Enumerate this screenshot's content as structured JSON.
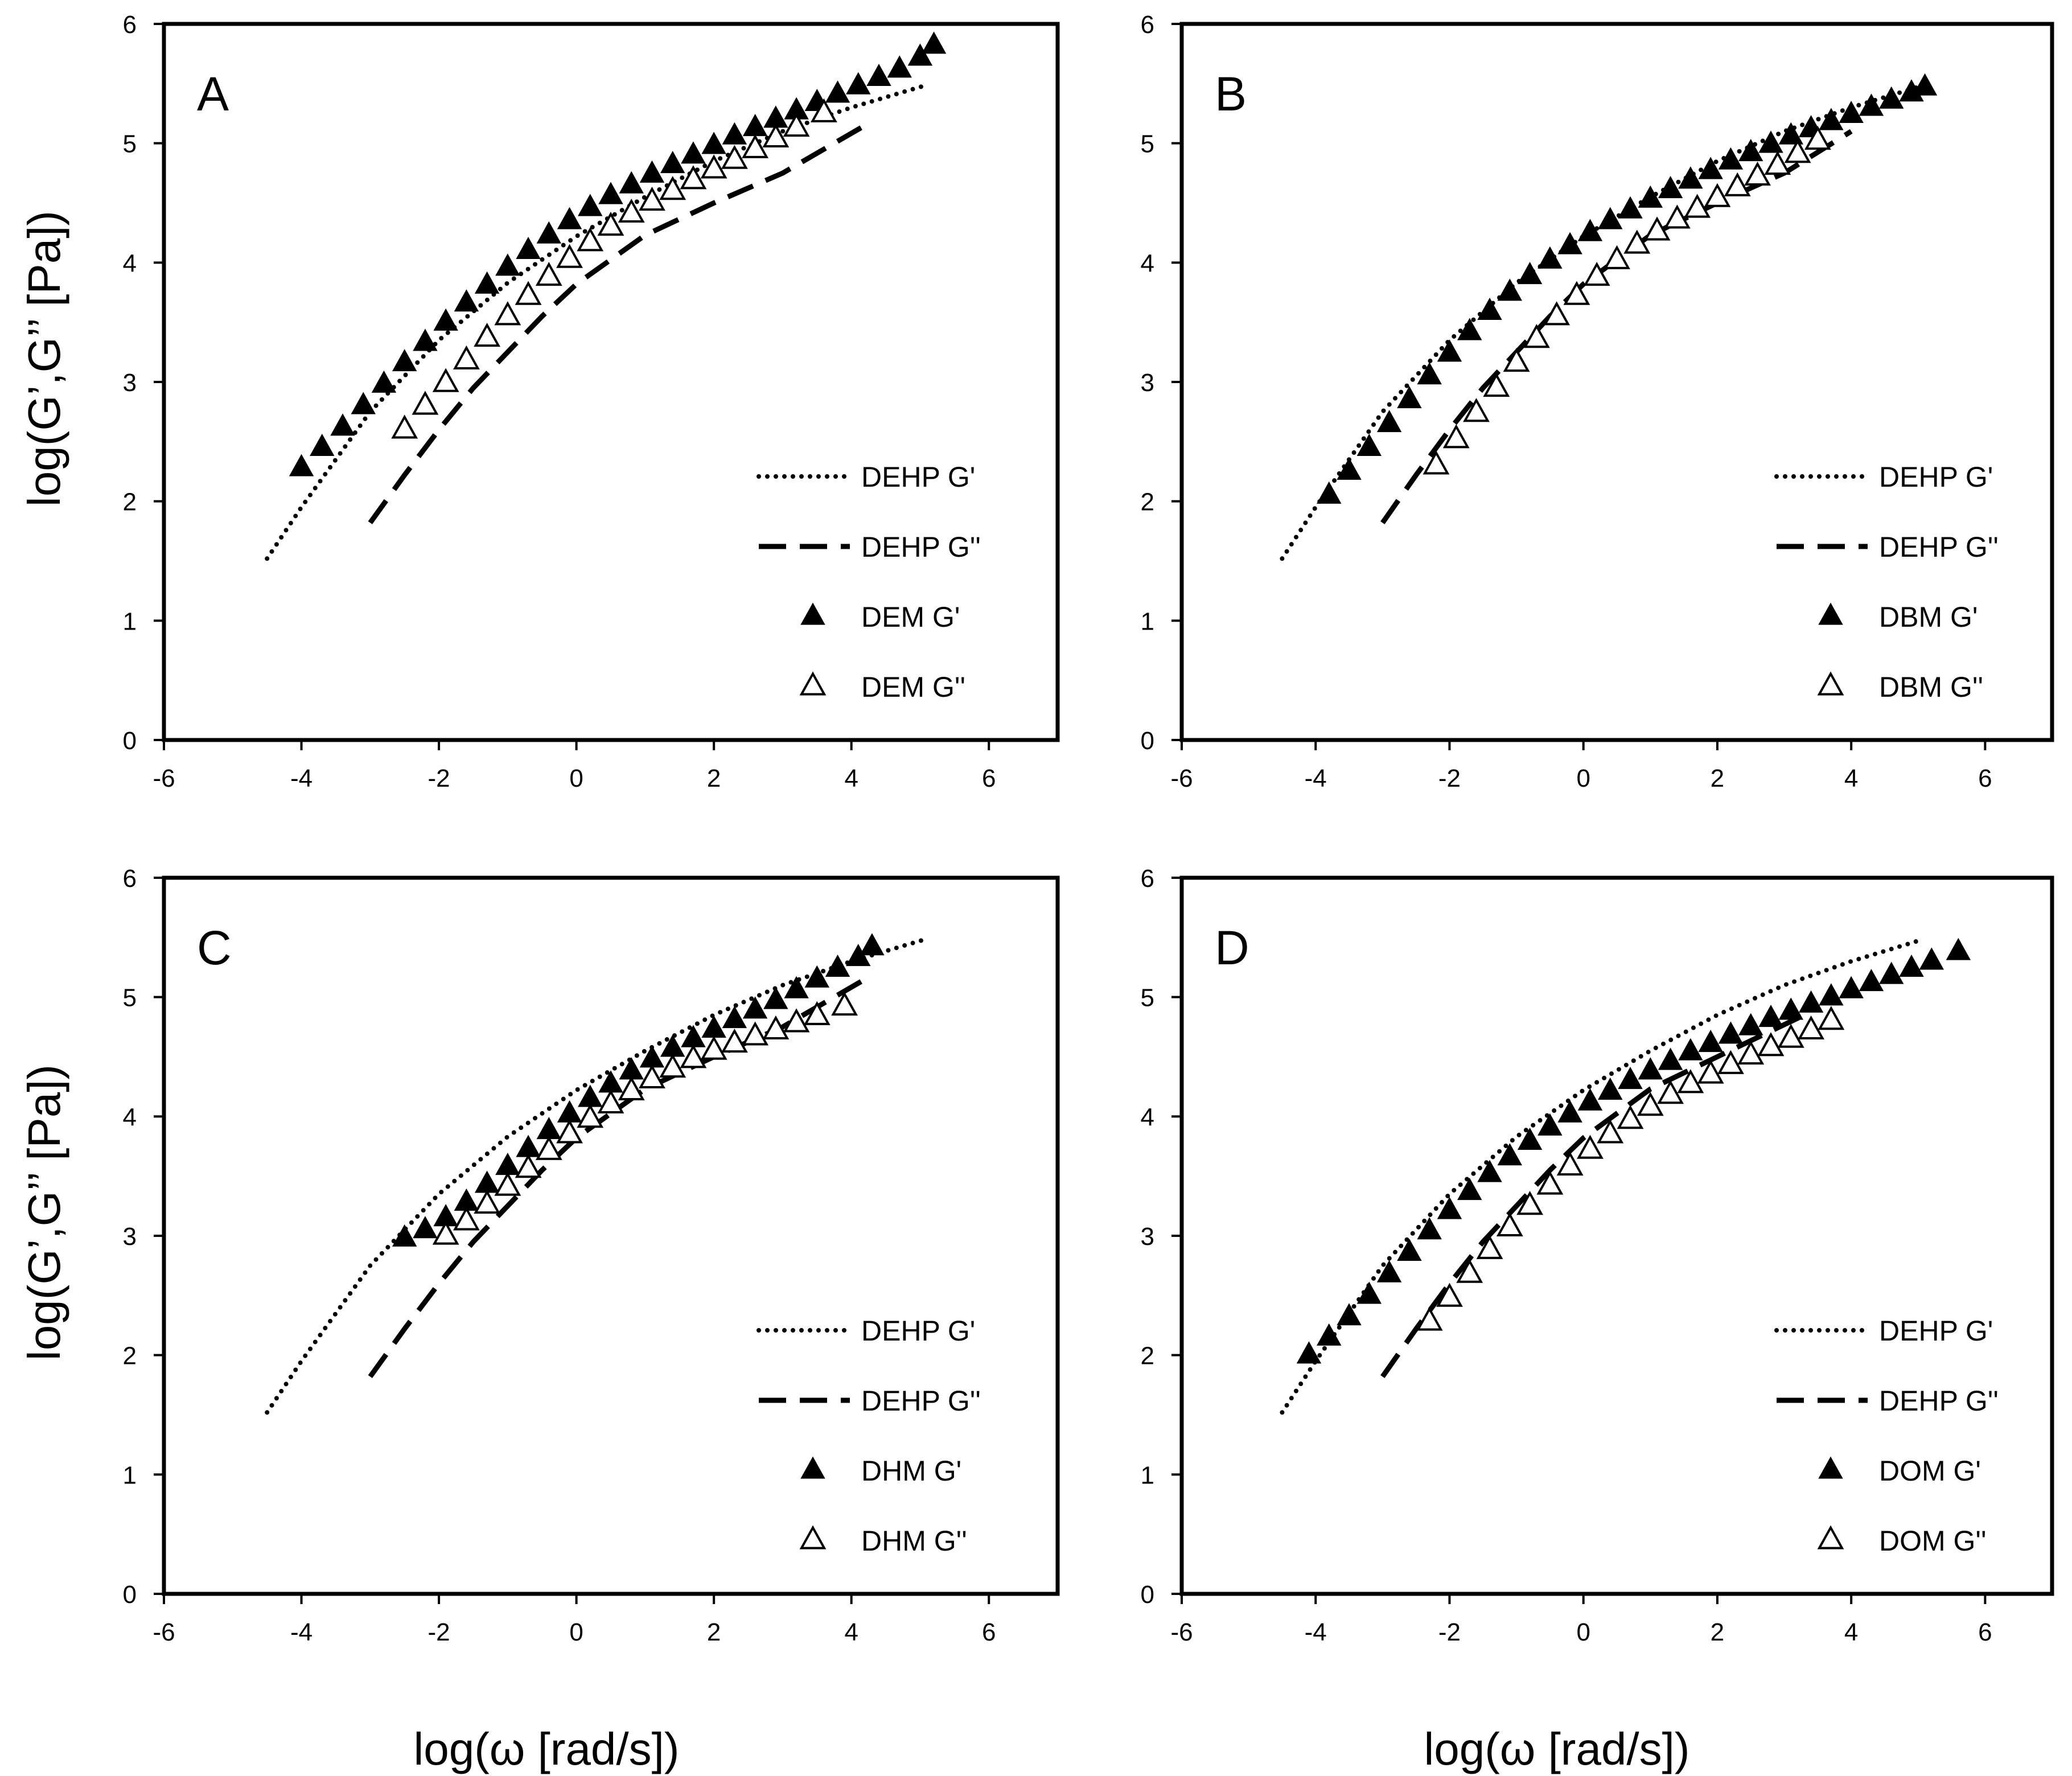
{
  "figure": {
    "xlabel": "log(ω [rad/s])",
    "ylabel": "log(G’,G’’  [Pa])"
  },
  "chart_data": [
    {
      "type": "scatter",
      "panel": "A",
      "xlim": [
        -6,
        7
      ],
      "ylim": [
        0,
        6
      ],
      "xticks": [
        "-6",
        "-4",
        "-2",
        "0",
        "2",
        "4",
        "6"
      ],
      "yticks": [
        "0",
        "1",
        "2",
        "3",
        "4",
        "5",
        "6"
      ],
      "grid": false,
      "legend_position": "bottom-right",
      "series": [
        {
          "name": "DEHP  G'",
          "style": "dotted-line",
          "x": [
            -4.5,
            -4,
            -3,
            -2,
            -1,
            0,
            1,
            2,
            3,
            4,
            5.05
          ],
          "y": [
            1.52,
            1.95,
            2.75,
            3.35,
            3.83,
            4.22,
            4.55,
            4.85,
            5.1,
            5.3,
            5.48
          ]
        },
        {
          "name": "DEHP  G''",
          "style": "dashed-line",
          "x": [
            -3,
            -2.5,
            -2,
            -1.5,
            -1,
            -0.5,
            0,
            1,
            2,
            3,
            4.2
          ],
          "y": [
            1.82,
            2.22,
            2.6,
            2.95,
            3.25,
            3.55,
            3.82,
            4.23,
            4.5,
            4.75,
            5.15
          ]
        },
        {
          "name": "DEM  G'",
          "style": "filled-triangle",
          "x": [
            -4,
            -3.7,
            -3.4,
            -3.1,
            -2.8,
            -2.5,
            -2.2,
            -1.9,
            -1.6,
            -1.3,
            -1,
            -0.7,
            -0.4,
            -0.1,
            0.2,
            0.5,
            0.8,
            1.1,
            1.4,
            1.7,
            2,
            2.3,
            2.6,
            2.9,
            3.2,
            3.5,
            3.8,
            4.1,
            4.4,
            4.7,
            5,
            5.2
          ],
          "y": [
            2.28,
            2.45,
            2.62,
            2.8,
            2.98,
            3.16,
            3.33,
            3.5,
            3.66,
            3.81,
            3.96,
            4.1,
            4.23,
            4.35,
            4.46,
            4.56,
            4.65,
            4.74,
            4.82,
            4.9,
            4.98,
            5.06,
            5.13,
            5.2,
            5.27,
            5.34,
            5.41,
            5.48,
            5.55,
            5.62,
            5.72,
            5.82
          ]
        },
        {
          "name": "DEM  G''",
          "style": "open-triangle",
          "x": [
            -2.5,
            -2.2,
            -1.9,
            -1.6,
            -1.3,
            -1,
            -0.7,
            -0.4,
            -0.1,
            0.2,
            0.5,
            0.8,
            1.1,
            1.4,
            1.7,
            2,
            2.3,
            2.6,
            2.9,
            3.2,
            3.6
          ],
          "y": [
            2.6,
            2.8,
            2.99,
            3.18,
            3.37,
            3.55,
            3.72,
            3.88,
            4.03,
            4.17,
            4.3,
            4.41,
            4.51,
            4.6,
            4.69,
            4.78,
            4.86,
            4.95,
            5.04,
            5.13,
            5.25
          ]
        }
      ]
    },
    {
      "type": "scatter",
      "panel": "B",
      "xlim": [
        -6,
        7
      ],
      "ylim": [
        0,
        6
      ],
      "xticks": [
        "-6",
        "-4",
        "-2",
        "0",
        "2",
        "4",
        "6"
      ],
      "yticks": [
        "0",
        "1",
        "2",
        "3",
        "4",
        "5",
        "6"
      ],
      "grid": false,
      "legend_position": "bottom-right",
      "series": [
        {
          "name": "DEHP  G'",
          "style": "dotted-line",
          "x": [
            -4.5,
            -4,
            -3,
            -2,
            -1,
            0,
            1,
            2,
            3,
            4,
            5.05
          ],
          "y": [
            1.52,
            1.95,
            2.75,
            3.35,
            3.83,
            4.22,
            4.55,
            4.85,
            5.1,
            5.3,
            5.48
          ]
        },
        {
          "name": "DEHP  G''",
          "style": "dashed-line",
          "x": [
            -3,
            -2.5,
            -2,
            -1.5,
            -1,
            -0.5,
            0,
            1,
            2,
            3,
            4
          ],
          "y": [
            1.82,
            2.22,
            2.6,
            2.95,
            3.25,
            3.55,
            3.82,
            4.23,
            4.5,
            4.75,
            5.1
          ]
        },
        {
          "name": "DBM  G'",
          "style": "filled-triangle",
          "x": [
            -3.8,
            -3.5,
            -3.2,
            -2.9,
            -2.6,
            -2.3,
            -2,
            -1.7,
            -1.4,
            -1.1,
            -0.8,
            -0.5,
            -0.2,
            0.1,
            0.4,
            0.7,
            1,
            1.3,
            1.6,
            1.9,
            2.2,
            2.5,
            2.8,
            3.1,
            3.4,
            3.7,
            4,
            4.3,
            4.6,
            4.9,
            5.1
          ],
          "y": [
            2.05,
            2.25,
            2.45,
            2.65,
            2.85,
            3.05,
            3.24,
            3.42,
            3.59,
            3.75,
            3.89,
            4.02,
            4.14,
            4.25,
            4.35,
            4.44,
            4.53,
            4.61,
            4.69,
            4.77,
            4.85,
            4.92,
            4.99,
            5.06,
            5.12,
            5.18,
            5.24,
            5.3,
            5.36,
            5.42,
            5.47
          ]
        },
        {
          "name": "DBM  G''",
          "style": "open-triangle",
          "x": [
            -2.2,
            -1.9,
            -1.6,
            -1.3,
            -1,
            -0.7,
            -0.4,
            -0.1,
            0.2,
            0.5,
            0.8,
            1.1,
            1.4,
            1.7,
            2,
            2.3,
            2.6,
            2.9,
            3.2,
            3.5
          ],
          "y": [
            2.3,
            2.52,
            2.74,
            2.95,
            3.16,
            3.36,
            3.55,
            3.72,
            3.88,
            4.02,
            4.15,
            4.26,
            4.36,
            4.45,
            4.54,
            4.63,
            4.72,
            4.81,
            4.91,
            5.02
          ]
        }
      ]
    },
    {
      "type": "scatter",
      "panel": "C",
      "xlim": [
        -6,
        7
      ],
      "ylim": [
        0,
        6
      ],
      "xticks": [
        "-6",
        "-4",
        "-2",
        "0",
        "2",
        "4",
        "6"
      ],
      "yticks": [
        "0",
        "1",
        "2",
        "3",
        "4",
        "5",
        "6"
      ],
      "grid": false,
      "legend_position": "bottom-right",
      "series": [
        {
          "name": "DEHP  G'",
          "style": "dotted-line",
          "x": [
            -4.5,
            -4,
            -3,
            -2,
            -1,
            0,
            1,
            2,
            3,
            4,
            5.05
          ],
          "y": [
            1.52,
            1.95,
            2.75,
            3.35,
            3.83,
            4.22,
            4.55,
            4.85,
            5.1,
            5.3,
            5.48
          ]
        },
        {
          "name": "DEHP  G''",
          "style": "dashed-line",
          "x": [
            -3,
            -2.5,
            -2,
            -1.5,
            -1,
            -0.5,
            0,
            1,
            2,
            3,
            4.2
          ],
          "y": [
            1.82,
            2.22,
            2.6,
            2.95,
            3.25,
            3.55,
            3.82,
            4.23,
            4.5,
            4.75,
            5.15
          ]
        },
        {
          "name": "DHM  G'",
          "style": "filled-triangle",
          "x": [
            -2.5,
            -2.2,
            -1.9,
            -1.6,
            -1.3,
            -1,
            -0.7,
            -0.4,
            -0.1,
            0.2,
            0.5,
            0.8,
            1.1,
            1.4,
            1.7,
            2,
            2.3,
            2.6,
            2.9,
            3.2,
            3.5,
            3.8,
            4.1,
            4.3
          ],
          "y": [
            2.98,
            3.05,
            3.15,
            3.28,
            3.43,
            3.58,
            3.73,
            3.88,
            4.02,
            4.15,
            4.27,
            4.38,
            4.48,
            4.57,
            4.65,
            4.73,
            4.81,
            4.89,
            4.97,
            5.06,
            5.15,
            5.24,
            5.33,
            5.42
          ]
        },
        {
          "name": "DHM  G''",
          "style": "open-triangle",
          "x": [
            -1.9,
            -1.6,
            -1.3,
            -1,
            -0.7,
            -0.4,
            -0.1,
            0.2,
            0.5,
            0.8,
            1.1,
            1.4,
            1.7,
            2,
            2.3,
            2.6,
            2.9,
            3.2,
            3.5,
            3.9
          ],
          "y": [
            3.0,
            3.12,
            3.26,
            3.41,
            3.56,
            3.71,
            3.85,
            3.98,
            4.1,
            4.21,
            4.31,
            4.4,
            4.48,
            4.55,
            4.61,
            4.67,
            4.72,
            4.78,
            4.84,
            4.92
          ]
        }
      ]
    },
    {
      "type": "scatter",
      "panel": "D",
      "xlim": [
        -6,
        7
      ],
      "ylim": [
        0,
        6
      ],
      "xticks": [
        "-6",
        "-4",
        "-2",
        "0",
        "2",
        "4",
        "6"
      ],
      "yticks": [
        "0",
        "1",
        "2",
        "3",
        "4",
        "5",
        "6"
      ],
      "grid": false,
      "legend_position": "bottom-right",
      "series": [
        {
          "name": "DEHP  G'",
          "style": "dotted-line",
          "x": [
            -4.5,
            -4,
            -3,
            -2,
            -1,
            0,
            1,
            2,
            3,
            4,
            5.05
          ],
          "y": [
            1.52,
            1.95,
            2.75,
            3.35,
            3.83,
            4.22,
            4.55,
            4.85,
            5.1,
            5.3,
            5.48
          ]
        },
        {
          "name": "DEHP  G''",
          "style": "dashed-line",
          "x": [
            -3,
            -2.5,
            -2,
            -1.5,
            -1,
            -0.5,
            0,
            1,
            2,
            3.3
          ],
          "y": [
            1.82,
            2.22,
            2.6,
            2.95,
            3.25,
            3.55,
            3.82,
            4.23,
            4.5,
            4.85
          ]
        },
        {
          "name": "DOM  G'",
          "style": "filled-triangle",
          "x": [
            -4.1,
            -3.8,
            -3.5,
            -3.2,
            -2.9,
            -2.6,
            -2.3,
            -2,
            -1.7,
            -1.4,
            -1.1,
            -0.8,
            -0.5,
            -0.2,
            0.1,
            0.4,
            0.7,
            1,
            1.3,
            1.6,
            1.9,
            2.2,
            2.5,
            2.8,
            3.1,
            3.4,
            3.7,
            4,
            4.3,
            4.6,
            4.9,
            5.2,
            5.6
          ],
          "y": [
            2.0,
            2.15,
            2.32,
            2.5,
            2.68,
            2.86,
            3.04,
            3.21,
            3.37,
            3.52,
            3.66,
            3.79,
            3.91,
            4.02,
            4.12,
            4.21,
            4.3,
            4.38,
            4.46,
            4.54,
            4.61,
            4.68,
            4.75,
            4.82,
            4.88,
            4.94,
            5.0,
            5.06,
            5.12,
            5.18,
            5.24,
            5.3,
            5.38
          ]
        },
        {
          "name": "DOM  G''",
          "style": "open-triangle",
          "x": [
            -2.3,
            -2,
            -1.7,
            -1.4,
            -1.1,
            -0.8,
            -0.5,
            -0.2,
            0.1,
            0.4,
            0.7,
            1,
            1.3,
            1.6,
            1.9,
            2.2,
            2.5,
            2.8,
            3.1,
            3.4,
            3.7
          ],
          "y": [
            2.28,
            2.48,
            2.68,
            2.88,
            3.07,
            3.25,
            3.42,
            3.58,
            3.72,
            3.85,
            3.97,
            4.08,
            4.18,
            4.27,
            4.35,
            4.43,
            4.51,
            4.58,
            4.65,
            4.72,
            4.8
          ]
        }
      ]
    }
  ]
}
